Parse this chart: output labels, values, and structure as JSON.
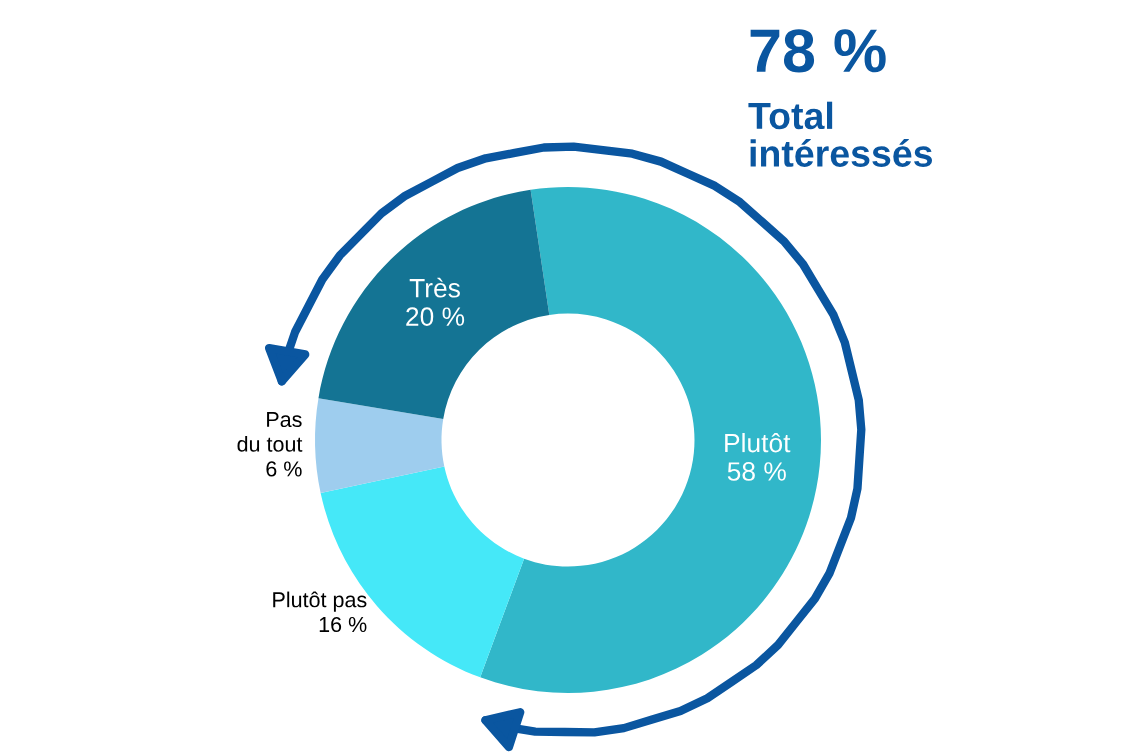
{
  "chart_data": {
    "type": "donut",
    "title": "78 %",
    "subtitle": "Total\nintéressés",
    "categories": [
      "Plutôt",
      "Plutôt pas",
      "Pas\ndu tout",
      "Très"
    ],
    "values": [
      58,
      16,
      6,
      20
    ],
    "value_labels": [
      "58 %",
      "16 %",
      "6 %",
      "20 %"
    ],
    "colors": [
      "#31b7c9",
      "#45e8f8",
      "#9ecdee",
      "#147494"
    ],
    "legend": false
  }
}
